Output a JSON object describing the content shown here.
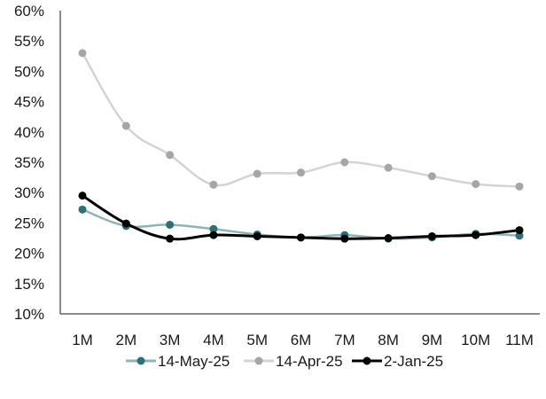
{
  "chart_data": {
    "type": "line",
    "title": "",
    "xlabel": "",
    "ylabel": "",
    "categories": [
      "1M",
      "2M",
      "3M",
      "4M",
      "5M",
      "6M",
      "7M",
      "8M",
      "9M",
      "10M",
      "11M"
    ],
    "y_tick_labels": [
      "10%",
      "15%",
      "20%",
      "25%",
      "30%",
      "35%",
      "40%",
      "45%",
      "50%",
      "55%",
      "60%"
    ],
    "ylim": [
      10,
      60
    ],
    "y_step": 5,
    "grid": false,
    "legend_position": "bottom",
    "series": [
      {
        "name": "14-May-25",
        "color": "#2e6f78",
        "line_color": "#8fb3b8",
        "values": [
          27.2,
          24.5,
          24.7,
          24.0,
          23.1,
          22.6,
          23.0,
          22.4,
          22.6,
          23.2,
          22.9
        ]
      },
      {
        "name": "14-Apr-25",
        "color": "#a6a6a6",
        "line_color": "#d4d4d4",
        "values": [
          53.0,
          41.0,
          36.2,
          31.3,
          33.1,
          33.3,
          35.0,
          34.1,
          32.7,
          31.4,
          31.0
        ]
      },
      {
        "name": "2-Jan-25",
        "color": "#000000",
        "line_color": "#000000",
        "values": [
          29.5,
          24.9,
          22.4,
          23.0,
          22.8,
          22.6,
          22.4,
          22.5,
          22.8,
          23.0,
          23.8
        ]
      }
    ]
  }
}
